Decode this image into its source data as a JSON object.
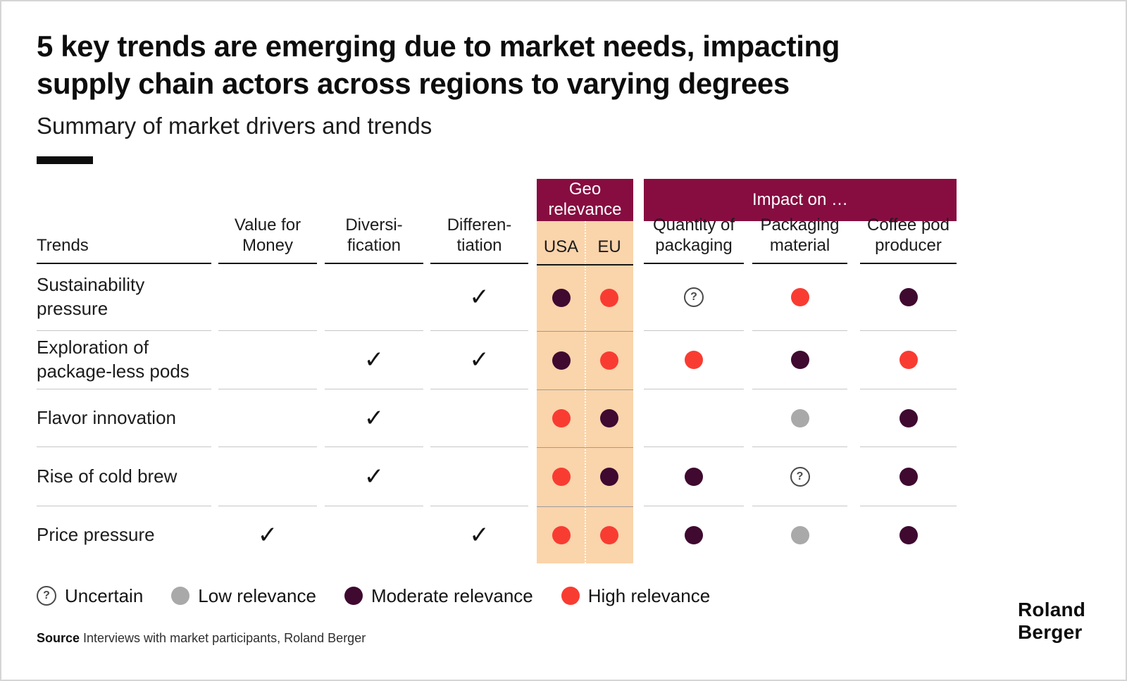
{
  "slide": {
    "title": "5 key trends are emerging due to market needs, impacting supply chain actors across regions to varying degrees",
    "subtitle": "Summary of market drivers and trends"
  },
  "table": {
    "bands": {
      "geo": "Geo\nrelevance",
      "impact": "Impact on …"
    },
    "columns": {
      "trends": "Trends",
      "value_for_money": "Value for\nMoney",
      "diversification": "Diversi-\nfication",
      "differentiation": "Differen-\ntiation",
      "usa": "USA",
      "eu": "EU",
      "quantity_of_packaging": "Quantity of\npackaging",
      "packaging_material": "Packaging\nmaterial",
      "coffee_pod_producer": "Coffee pod\nproducer"
    },
    "rows": [
      {
        "label": "Sustainability\npressure",
        "value_for_money": "",
        "diversification": "",
        "differentiation": "✓",
        "usa": "moderate",
        "eu": "high",
        "quantity_of_packaging": "uncertain",
        "packaging_material": "high",
        "coffee_pod_producer": "moderate"
      },
      {
        "label": "Exploration of\npackage-less pods",
        "value_for_money": "",
        "diversification": "✓",
        "differentiation": "✓",
        "usa": "moderate",
        "eu": "high",
        "quantity_of_packaging": "high",
        "packaging_material": "moderate",
        "coffee_pod_producer": "high"
      },
      {
        "label": "Flavor innovation",
        "value_for_money": "",
        "diversification": "✓",
        "differentiation": "",
        "usa": "high",
        "eu": "moderate",
        "quantity_of_packaging": "none",
        "packaging_material": "low",
        "coffee_pod_producer": "moderate"
      },
      {
        "label": "Rise of cold brew",
        "value_for_money": "",
        "diversification": "✓",
        "differentiation": "",
        "usa": "high",
        "eu": "moderate",
        "quantity_of_packaging": "moderate",
        "packaging_material": "uncertain",
        "coffee_pod_producer": "moderate"
      },
      {
        "label": "Price pressure",
        "value_for_money": "✓",
        "diversification": "",
        "differentiation": "✓",
        "usa": "high",
        "eu": "high",
        "quantity_of_packaging": "moderate",
        "packaging_material": "low",
        "coffee_pod_producer": "moderate"
      }
    ]
  },
  "legend": {
    "items": [
      {
        "type": "uncertain",
        "label": "Uncertain"
      },
      {
        "type": "low",
        "label": "Low relevance"
      },
      {
        "type": "moderate",
        "label": "Moderate relevance"
      },
      {
        "type": "high",
        "label": "High relevance"
      }
    ]
  },
  "symbols": {
    "uncertain": "?",
    "check": "✓"
  },
  "source": {
    "label": "Source",
    "text": " Interviews with market participants, Roland Berger"
  },
  "logo": "Roland\nBerger",
  "colors": {
    "maroon_band": "#870D41",
    "peach_highlight": "#FAD4AB",
    "high_relevance": "#F93C32",
    "moderate_relevance": "#3F0930",
    "low_relevance": "#A9A9A9"
  }
}
